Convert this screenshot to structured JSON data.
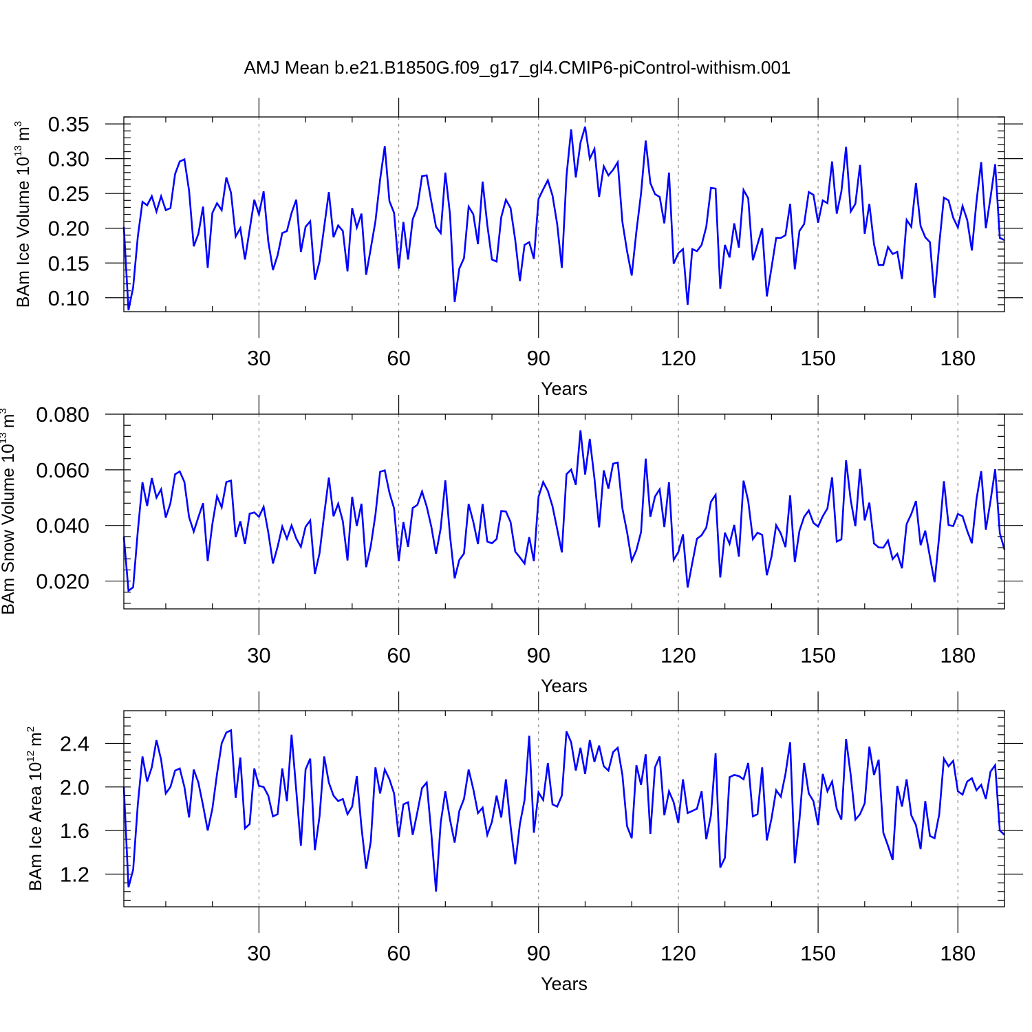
{
  "title": "AMJ Mean b.e21.B1850G.f09_g17_gl4.CMIP6-piControl-withism.001",
  "chart_data": [
    {
      "type": "line",
      "title": "AMJ Mean b.e21.B1850G.f09_g17_gl4.CMIP6-piControl-withism.001",
      "xlabel": "Years",
      "ylabel": "BAm Ice Volume 10",
      "ylabel_exp": "13",
      "ylabel_unit": "m",
      "ylabel_unit_exp": "3",
      "xlim": [
        1,
        190
      ],
      "ylim": [
        0.08,
        0.36
      ],
      "x_ticks": [
        30,
        60,
        90,
        120,
        150,
        180
      ],
      "x_tick_labels": [
        "30",
        "60",
        "90",
        "120",
        "150",
        "180"
      ],
      "y_ticks": [
        0.1,
        0.15,
        0.2,
        0.25,
        0.3,
        0.35
      ],
      "y_tick_labels": [
        "0.10",
        "0.15",
        "0.20",
        "0.25",
        "0.30",
        "0.35"
      ],
      "color": "#0000ff",
      "grid_color": "#888888",
      "x_start": 1,
      "series": [
        {
          "name": "BAm Ice Volume",
          "values": [
            0.202,
            0.082,
            0.115,
            0.188,
            0.238,
            0.233,
            0.246,
            0.224,
            0.246,
            0.226,
            0.229,
            0.278,
            0.296,
            0.299,
            0.254,
            0.174,
            0.192,
            0.231,
            0.143,
            0.222,
            0.236,
            0.226,
            0.273,
            0.251,
            0.188,
            0.2,
            0.155,
            0.198,
            0.241,
            0.22,
            0.253,
            0.181,
            0.14,
            0.161,
            0.193,
            0.196,
            0.222,
            0.241,
            0.166,
            0.202,
            0.21,
            0.126,
            0.152,
            0.202,
            0.252,
            0.187,
            0.204,
            0.196,
            0.138,
            0.229,
            0.201,
            0.221,
            0.133,
            0.171,
            0.21,
            0.27,
            0.318,
            0.239,
            0.222,
            0.142,
            0.209,
            0.155,
            0.213,
            0.23,
            0.275,
            0.276,
            0.238,
            0.202,
            0.193,
            0.28,
            0.22,
            0.094,
            0.142,
            0.157,
            0.231,
            0.22,
            0.177,
            0.267,
            0.205,
            0.155,
            0.152,
            0.216,
            0.241,
            0.229,
            0.183,
            0.124,
            0.176,
            0.18,
            0.156,
            0.242,
            0.256,
            0.269,
            0.247,
            0.206,
            0.143,
            0.275,
            0.342,
            0.273,
            0.323,
            0.346,
            0.3,
            0.314,
            0.245,
            0.289,
            0.276,
            0.284,
            0.295,
            0.209,
            0.167,
            0.132,
            0.195,
            0.25,
            0.326,
            0.265,
            0.249,
            0.245,
            0.207,
            0.28,
            0.149,
            0.164,
            0.17,
            0.09,
            0.17,
            0.167,
            0.176,
            0.202,
            0.258,
            0.257,
            0.113,
            0.176,
            0.158,
            0.207,
            0.172,
            0.255,
            0.243,
            0.154,
            0.177,
            0.2,
            0.102,
            0.143,
            0.186,
            0.186,
            0.19,
            0.235,
            0.141,
            0.196,
            0.206,
            0.252,
            0.248,
            0.208,
            0.24,
            0.236,
            0.296,
            0.221,
            0.253,
            0.317,
            0.224,
            0.235,
            0.291,
            0.192,
            0.235,
            0.177,
            0.147,
            0.147,
            0.173,
            0.163,
            0.166,
            0.127,
            0.212,
            0.202,
            0.265,
            0.203,
            0.187,
            0.18,
            0.1,
            0.177,
            0.244,
            0.24,
            0.215,
            0.201,
            0.232,
            0.212,
            0.168,
            0.239,
            0.295,
            0.2,
            0.244,
            0.292,
            0.186,
            0.183
          ]
        }
      ]
    },
    {
      "type": "line",
      "xlabel": "Years",
      "ylabel": "BAm Snow Volume 10",
      "ylabel_exp": "13",
      "ylabel_unit": "m",
      "ylabel_unit_exp": "3",
      "xlim": [
        1,
        190
      ],
      "ylim": [
        0.01,
        0.08
      ],
      "x_ticks": [
        30,
        60,
        90,
        120,
        150,
        180
      ],
      "x_tick_labels": [
        "30",
        "60",
        "90",
        "120",
        "150",
        "180"
      ],
      "y_ticks": [
        0.02,
        0.04,
        0.06,
        0.08
      ],
      "y_tick_labels": [
        "0.020",
        "0.040",
        "0.060",
        "0.080"
      ],
      "color": "#0000ff",
      "grid_color": "#888888",
      "x_start": 1,
      "series": [
        {
          "name": "BAm Snow Volume",
          "values": [
            0.036,
            0.0165,
            0.0178,
            0.038,
            0.0555,
            0.047,
            0.057,
            0.05,
            0.053,
            0.0428,
            0.048,
            0.0584,
            0.0594,
            0.0556,
            0.043,
            0.0378,
            0.043,
            0.048,
            0.0272,
            0.0405,
            0.0505,
            0.0465,
            0.0556,
            0.0561,
            0.0358,
            0.0415,
            0.0333,
            0.0442,
            0.0447,
            0.0431,
            0.0467,
            0.0375,
            0.0263,
            0.0323,
            0.0396,
            0.0352,
            0.04,
            0.0353,
            0.0323,
            0.0395,
            0.0418,
            0.0226,
            0.03,
            0.044,
            0.0572,
            0.0433,
            0.0478,
            0.0415,
            0.0274,
            0.0503,
            0.0398,
            0.0478,
            0.025,
            0.0326,
            0.0439,
            0.0593,
            0.0598,
            0.0518,
            0.0461,
            0.0272,
            0.0412,
            0.0323,
            0.0463,
            0.0474,
            0.0522,
            0.0468,
            0.0395,
            0.0298,
            0.0389,
            0.0562,
            0.0363,
            0.021,
            0.0276,
            0.0299,
            0.0477,
            0.0413,
            0.0333,
            0.0477,
            0.0342,
            0.0336,
            0.0351,
            0.0452,
            0.045,
            0.0412,
            0.0306,
            0.0285,
            0.0263,
            0.0358,
            0.0272,
            0.0503,
            0.0556,
            0.0524,
            0.0469,
            0.0387,
            0.0303,
            0.0584,
            0.0601,
            0.0546,
            0.0742,
            0.0583,
            0.0711,
            0.0569,
            0.0393,
            0.0598,
            0.0532,
            0.0622,
            0.0626,
            0.0461,
            0.0376,
            0.0273,
            0.0311,
            0.0376,
            0.064,
            0.0431,
            0.0504,
            0.053,
            0.0394,
            0.0555,
            0.0276,
            0.0304,
            0.0368,
            0.0177,
            0.0265,
            0.0352,
            0.0365,
            0.0392,
            0.0485,
            0.051,
            0.0213,
            0.0374,
            0.0334,
            0.0402,
            0.0288,
            0.0561,
            0.0488,
            0.0351,
            0.0374,
            0.0366,
            0.0221,
            0.0288,
            0.0401,
            0.0371,
            0.0322,
            0.0508,
            0.0268,
            0.0381,
            0.0431,
            0.0454,
            0.0409,
            0.0396,
            0.0433,
            0.0461,
            0.0573,
            0.0342,
            0.035,
            0.0634,
            0.0491,
            0.0397,
            0.0603,
            0.0418,
            0.0482,
            0.0335,
            0.0321,
            0.032,
            0.0346,
            0.0279,
            0.0298,
            0.0246,
            0.0405,
            0.0441,
            0.0488,
            0.0329,
            0.0381,
            0.0287,
            0.0196,
            0.0363,
            0.0559,
            0.0401,
            0.0398,
            0.0441,
            0.0433,
            0.0381,
            0.0336,
            0.0495,
            0.0595,
            0.0385,
            0.0488,
            0.0602,
            0.0372,
            0.0313
          ]
        }
      ]
    },
    {
      "type": "line",
      "xlabel": "Years",
      "ylabel": "BAm Ice Area 10",
      "ylabel_exp": "12",
      "ylabel_unit": "m",
      "ylabel_unit_exp": "2",
      "xlim": [
        1,
        190
      ],
      "ylim": [
        0.9,
        2.7
      ],
      "x_ticks": [
        30,
        60,
        90,
        120,
        150,
        180
      ],
      "x_tick_labels": [
        "30",
        "60",
        "90",
        "120",
        "150",
        "180"
      ],
      "y_ticks": [
        1.2,
        1.6,
        2.0,
        2.4
      ],
      "y_tick_labels": [
        "1.2",
        "1.6",
        "2.0",
        "2.4"
      ],
      "color": "#0000ff",
      "grid_color": "#888888",
      "x_start": 1,
      "series": [
        {
          "name": "BAm Ice Area",
          "values": [
            2.0,
            1.08,
            1.24,
            1.84,
            2.28,
            2.05,
            2.18,
            2.43,
            2.25,
            1.94,
            2.0,
            2.15,
            2.17,
            2.0,
            1.72,
            2.16,
            2.04,
            1.83,
            1.6,
            1.8,
            2.12,
            2.4,
            2.5,
            2.52,
            1.9,
            2.27,
            1.62,
            1.66,
            2.17,
            2.01,
            2.0,
            1.92,
            1.73,
            1.75,
            2.17,
            1.87,
            2.48,
            1.97,
            1.46,
            2.16,
            2.26,
            1.42,
            1.73,
            2.28,
            2.04,
            1.92,
            1.87,
            1.89,
            1.75,
            1.82,
            2.1,
            1.63,
            1.25,
            1.5,
            2.18,
            1.94,
            2.16,
            2.07,
            1.94,
            1.54,
            1.84,
            1.86,
            1.56,
            1.77,
            1.99,
            2.04,
            1.57,
            1.04,
            1.67,
            1.96,
            1.7,
            1.49,
            1.78,
            1.89,
            2.16,
            1.98,
            1.76,
            1.81,
            1.56,
            1.68,
            1.92,
            1.72,
            2.07,
            1.64,
            1.29,
            1.66,
            1.88,
            2.47,
            1.58,
            1.95,
            1.88,
            2.22,
            1.84,
            1.82,
            1.92,
            2.51,
            2.41,
            2.15,
            2.36,
            2.12,
            2.43,
            2.23,
            2.38,
            2.19,
            2.15,
            2.32,
            2.36,
            2.11,
            1.64,
            1.53,
            2.2,
            2.02,
            2.3,
            1.57,
            2.18,
            2.28,
            1.74,
            1.96,
            1.86,
            1.67,
            2.07,
            1.76,
            1.78,
            1.8,
            1.96,
            1.52,
            1.74,
            2.31,
            1.26,
            1.35,
            2.09,
            2.11,
            2.1,
            2.07,
            2.22,
            1.73,
            1.75,
            2.18,
            1.51,
            1.71,
            1.97,
            1.91,
            2.12,
            2.41,
            1.3,
            1.7,
            2.22,
            1.94,
            1.87,
            1.65,
            2.12,
            1.96,
            2.05,
            1.8,
            1.7,
            2.44,
            2.11,
            1.7,
            1.75,
            1.85,
            2.37,
            2.11,
            2.25,
            1.58,
            1.46,
            1.33,
            2.01,
            1.82,
            2.07,
            1.74,
            1.65,
            1.43,
            1.87,
            1.55,
            1.53,
            1.75,
            2.26,
            2.19,
            2.24,
            1.96,
            1.93,
            2.05,
            2.08,
            1.97,
            2.02,
            1.89,
            2.14,
            2.2,
            1.6,
            1.56
          ]
        }
      ]
    }
  ]
}
